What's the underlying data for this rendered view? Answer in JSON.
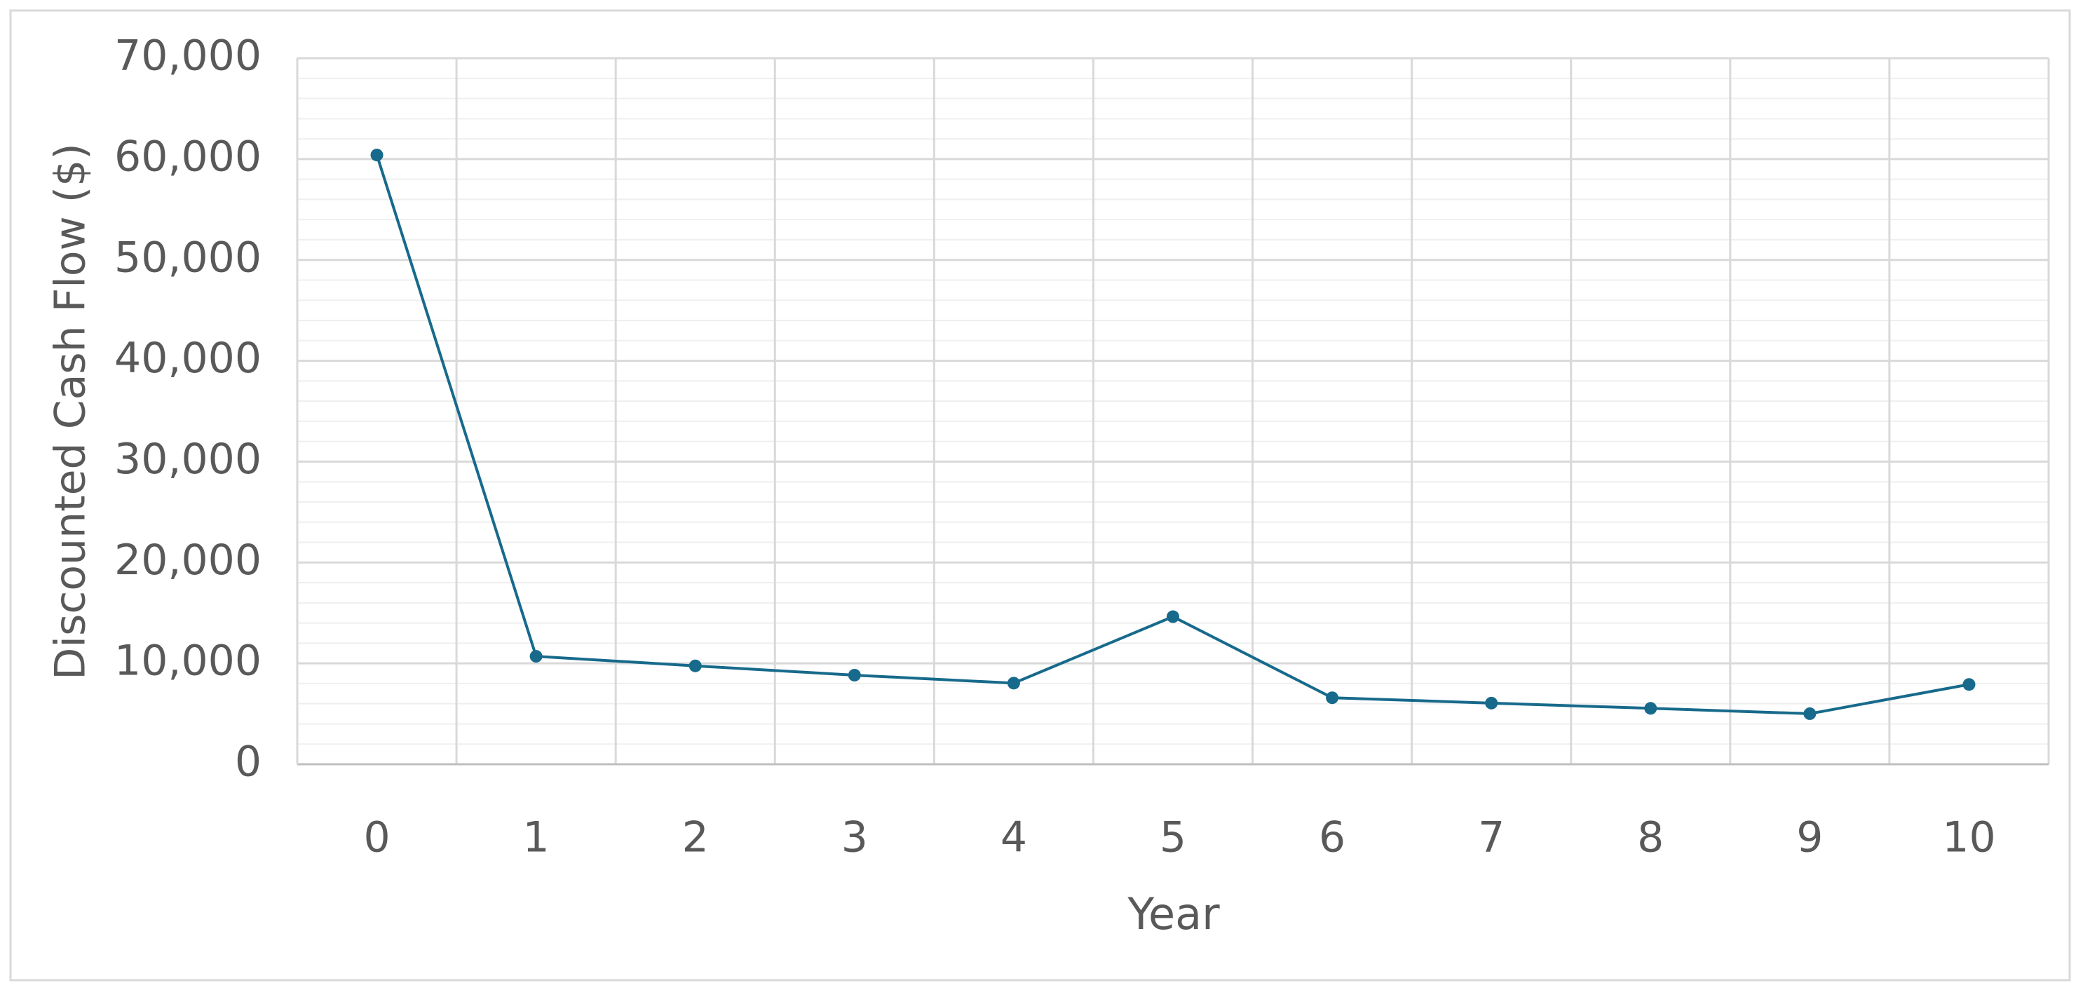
{
  "chart_data": {
    "type": "line",
    "x_label": "Year",
    "y_label": "Discounted Cash Flow ($)",
    "categories": [
      "0",
      "1",
      "2",
      "3",
      "4",
      "5",
      "6",
      "7",
      "8",
      "9",
      "10"
    ],
    "series": [
      {
        "color": "#176a8b",
        "values": [
          60400,
          10700,
          9750,
          8830,
          8040,
          14630,
          6590,
          6060,
          5540,
          5010,
          7910
        ]
      }
    ],
    "ylim": [
      0,
      70000
    ],
    "yticks": [
      0,
      {
        "value": 10000,
        "label": "10,000"
      },
      {
        "value": 20000,
        "label": "20,000"
      },
      {
        "value": 30000,
        "label": "30,000"
      },
      {
        "value": 40000,
        "label": "40,000"
      },
      {
        "value": 50000,
        "label": "50,000"
      },
      {
        "value": 60000,
        "label": "60,000"
      },
      {
        "value": 70000,
        "label": "70,000"
      }
    ],
    "grid": true,
    "minor_grid": true,
    "markers": true
  }
}
